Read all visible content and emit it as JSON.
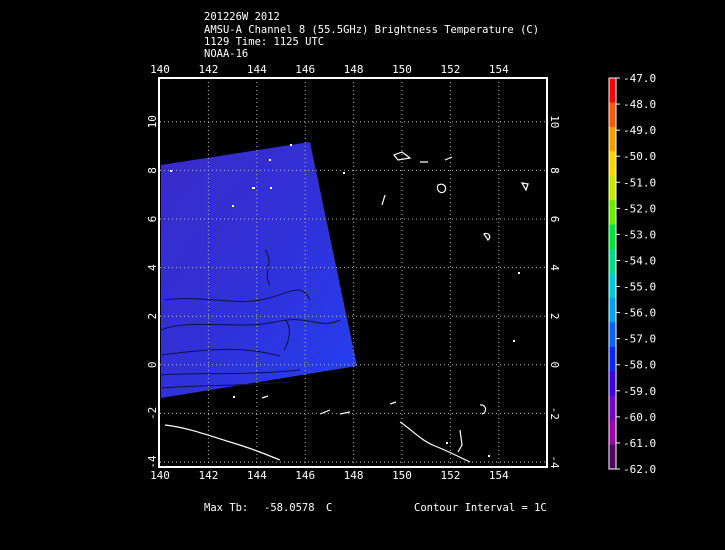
{
  "header": {
    "line1": "201226W 2012",
    "line2": "AMSU-A Channel 8 (55.5GHz) Brightness Temperature (C)",
    "line3": "1129 Time: 1125 UTC",
    "line4": "NOAA-16"
  },
  "map": {
    "lon_ticks": [
      "140",
      "142",
      "144",
      "146",
      "148",
      "150",
      "152",
      "154"
    ],
    "lat_ticks": [
      "-4",
      "-2",
      "0",
      "2",
      "4",
      "6",
      "8",
      "10"
    ],
    "swath_color_top": "#3a2cc8",
    "swath_color_bottom": "#2a3cf0"
  },
  "colorbar": {
    "labels": [
      "-47.0",
      "-48.0",
      "-49.0",
      "-50.0",
      "-51.0",
      "-52.0",
      "-53.0",
      "-54.0",
      "-55.0",
      "-56.0",
      "-57.0",
      "-58.0",
      "-59.0",
      "-60.0",
      "-61.0",
      "-62.0"
    ],
    "colors": [
      "#ff0000",
      "#ff5a00",
      "#ff9a00",
      "#ffd200",
      "#c8e600",
      "#64f000",
      "#00e632",
      "#00dc8c",
      "#00c8dc",
      "#00a0ff",
      "#0064ff",
      "#0028ff",
      "#3c00e6",
      "#7800c8",
      "#a000aa",
      "#500064"
    ]
  },
  "footer": {
    "max_label": "Max Tb:",
    "max_value": "-58.0578",
    "max_unit": "C",
    "contour_label": "Contour Interval = 1C"
  }
}
